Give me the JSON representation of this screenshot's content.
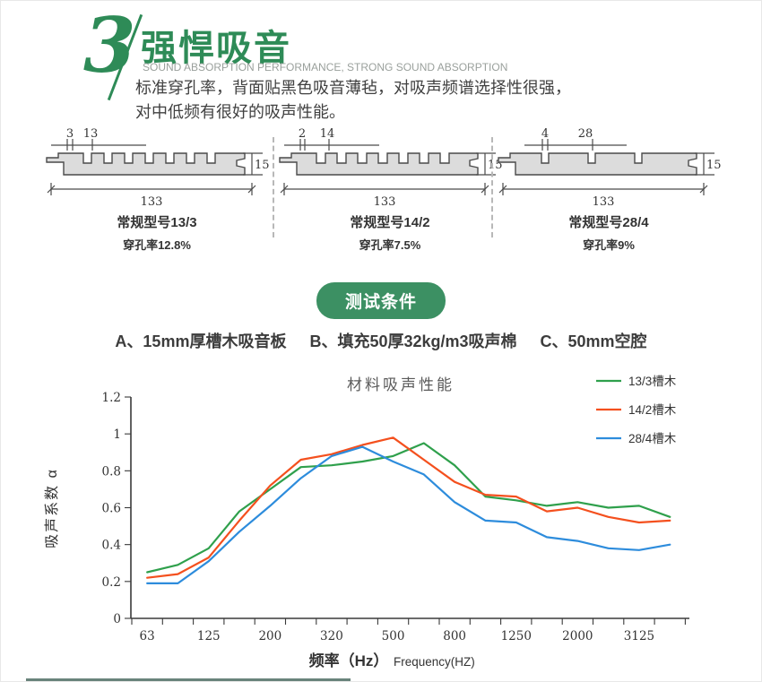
{
  "page": {
    "background": "#ffffff",
    "accent_color": "#2e8b57"
  },
  "header": {
    "section_number": "3",
    "title": "强悍吸音",
    "subtitle": "SOUND ABSORPTION PERFORMANCE, STRONG SOUND ABSORPTION",
    "description_line1": "标准穿孔率，背面贴黑色吸音薄毡，对吸声频谱选择性很强，",
    "description_line2": "对中低频有很好的吸声性能。"
  },
  "panels": [
    {
      "model": "常规型号13/3",
      "perforation": "穿孔率12.8%",
      "dim_slot": "3",
      "dim_pitch": "13",
      "dim_thickness": "15",
      "dim_width": "133",
      "slot_count": 7
    },
    {
      "model": "常规型号14/2",
      "perforation": "穿孔率7.5%",
      "dim_slot": "2",
      "dim_pitch": "14",
      "dim_thickness": "15",
      "dim_width": "133",
      "slot_count": 7
    },
    {
      "model": "常规型号28/4",
      "perforation": "穿孔率9%",
      "dim_slot": "4",
      "dim_pitch": "28",
      "dim_thickness": "15",
      "dim_width": "133",
      "slot_count": 3
    }
  ],
  "badge": {
    "label": "测试条件"
  },
  "conditions": [
    "A、15mm厚槽木吸音板",
    "B、填充50厚32kg/m3吸声棉",
    "C、50mm空腔"
  ],
  "chart_data": {
    "type": "line",
    "title": "材料吸声性能",
    "ylabel": "吸声系数 α",
    "xlabel_cn": "频率（Hz）",
    "xlabel_en": "Frequency(HZ)",
    "ylim": [
      0,
      1.2
    ],
    "ytick_labels": [
      "0",
      "0.2",
      "0.4",
      "0.6",
      "0.8",
      "1",
      "1.2"
    ],
    "x": [
      63,
      80,
      125,
      160,
      200,
      250,
      320,
      400,
      500,
      630,
      800,
      1000,
      1250,
      1600,
      2000,
      2500,
      3125,
      4000
    ],
    "x_tick_labels_shown": [
      "63",
      "125",
      "200",
      "320",
      "500",
      "800",
      "1250",
      "2000",
      "3125"
    ],
    "grid": false,
    "legend_position": "top-right",
    "series": [
      {
        "name": "13/3槽木",
        "color": "#2fa04c",
        "values": [
          0.25,
          0.29,
          0.38,
          0.58,
          0.7,
          0.82,
          0.83,
          0.85,
          0.88,
          0.95,
          0.83,
          0.66,
          0.64,
          0.61,
          0.63,
          0.6,
          0.61,
          0.55
        ]
      },
      {
        "name": "14/2槽木",
        "color": "#f4501e",
        "values": [
          0.22,
          0.24,
          0.33,
          0.53,
          0.72,
          0.86,
          0.89,
          0.94,
          0.98,
          0.86,
          0.74,
          0.67,
          0.66,
          0.58,
          0.6,
          0.55,
          0.52,
          0.53
        ]
      },
      {
        "name": "28/4槽木",
        "color": "#2d8cdc",
        "values": [
          0.19,
          0.19,
          0.31,
          0.47,
          0.61,
          0.76,
          0.88,
          0.93,
          0.85,
          0.78,
          0.63,
          0.53,
          0.52,
          0.44,
          0.42,
          0.38,
          0.37,
          0.4
        ]
      }
    ]
  }
}
